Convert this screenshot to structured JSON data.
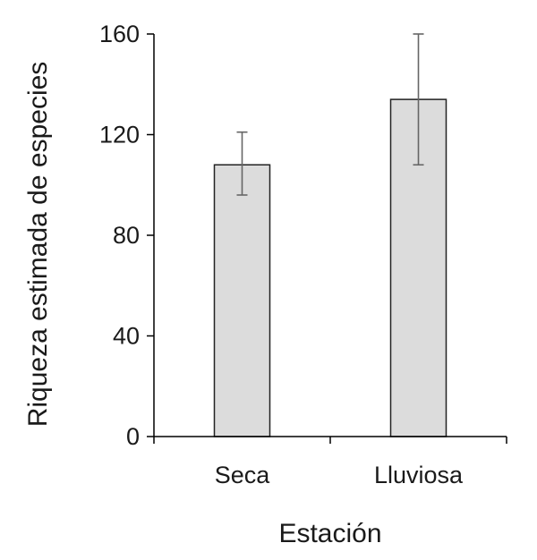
{
  "chart_data": {
    "type": "bar",
    "title": "",
    "xlabel": "Estación",
    "ylabel": "Riqueza estimada de especies",
    "categories": [
      "Seca",
      "Lluviosa"
    ],
    "values": [
      108,
      134
    ],
    "error_low": [
      96,
      108
    ],
    "error_high": [
      121,
      160
    ],
    "ylim": [
      0,
      160
    ],
    "yticks": [
      0,
      40,
      80,
      120,
      160
    ],
    "ytick_labels": [
      "0",
      "40",
      "80",
      "120",
      "160"
    ],
    "grid": false,
    "legend": "none",
    "bar_color": "#dcdcdc",
    "bar_edge_color": "#222222",
    "error_bar_color": "#666666"
  }
}
